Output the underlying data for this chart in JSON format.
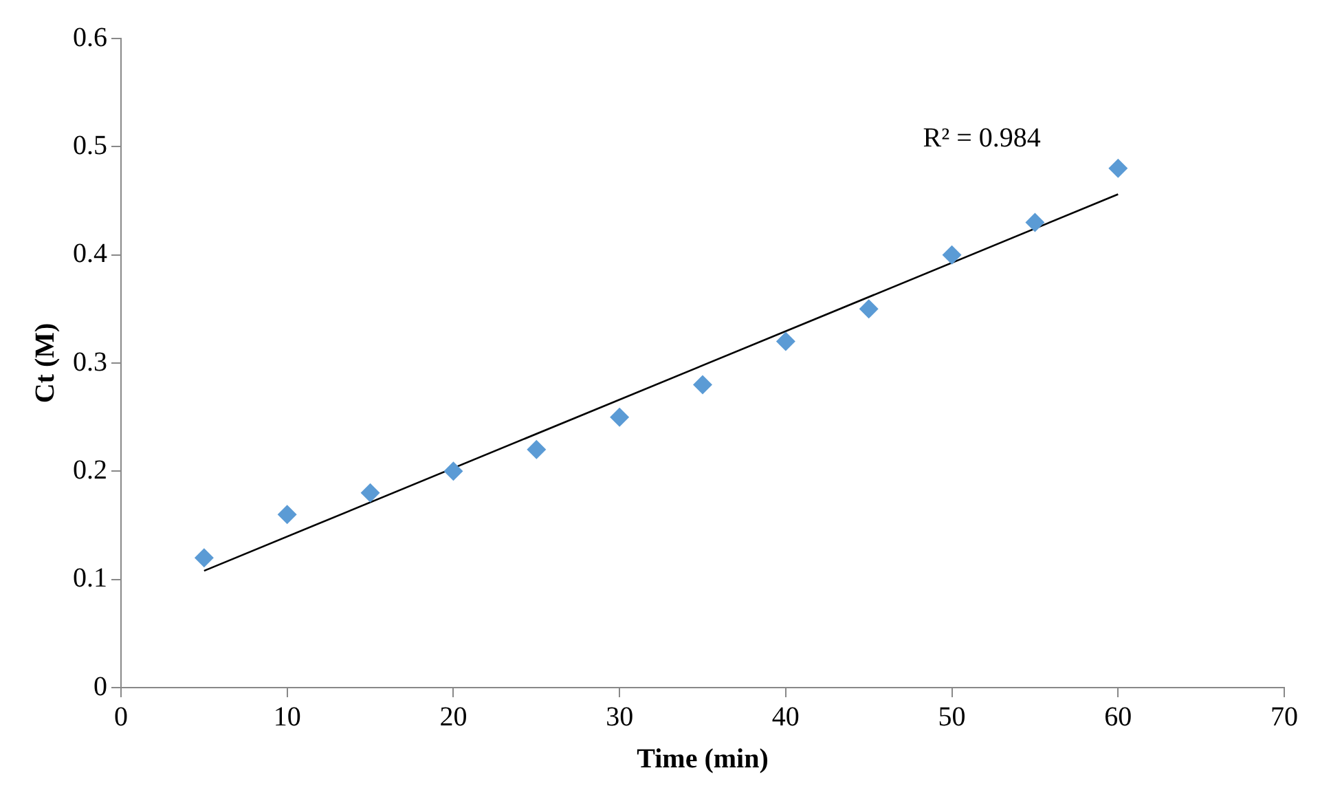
{
  "chart_data": {
    "type": "scatter",
    "xlabel": "Time (min)",
    "ylabel": "Ct (M)",
    "x": [
      5,
      10,
      15,
      20,
      25,
      30,
      35,
      40,
      45,
      50,
      55,
      60
    ],
    "series": [
      {
        "color": "#5b9bd5",
        "marker": "diamond",
        "values": [
          0.12,
          0.16,
          0.18,
          0.2,
          0.22,
          0.25,
          0.28,
          0.32,
          0.35,
          0.4,
          0.43,
          0.48
        ]
      },
      {
        "type": "line",
        "color": "#000000",
        "marker": "none",
        "line_style": "solid",
        "x": [
          5,
          60
        ],
        "values": [
          0.108,
          0.456
        ]
      }
    ],
    "xlim": [
      0,
      70
    ],
    "xticks": [
      0,
      10,
      20,
      30,
      40,
      50,
      60,
      70
    ],
    "ylim": [
      0,
      0.6
    ],
    "yticks": [
      0,
      0.1,
      0.2,
      0.3,
      0.4,
      0.5,
      0.6
    ],
    "grid": false,
    "legend": false,
    "annotations": [
      "R² = 0.984"
    ]
  }
}
